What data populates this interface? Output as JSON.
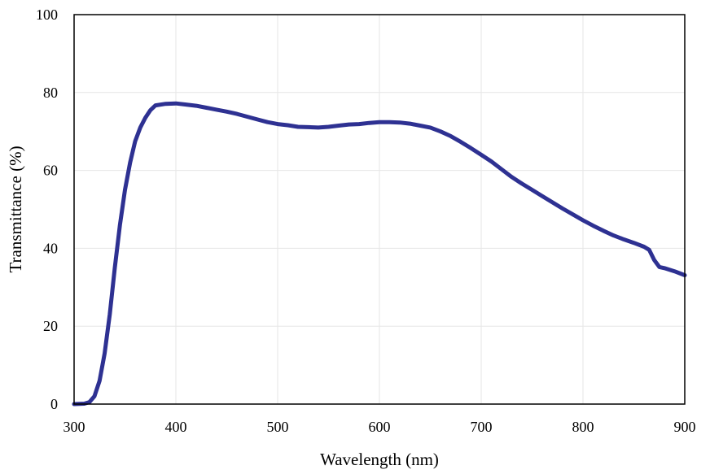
{
  "chart_data": {
    "type": "line",
    "title": "",
    "xlabel": "Wavelength (nm)",
    "ylabel": "Transmittance (%)",
    "xlim": [
      300,
      900
    ],
    "ylim": [
      0,
      100
    ],
    "x_ticks": [
      300,
      400,
      500,
      600,
      700,
      800,
      900
    ],
    "y_ticks": [
      0,
      20,
      40,
      60,
      80,
      100
    ],
    "grid": true,
    "legend": "none",
    "series": [
      {
        "color": "#2e3192",
        "points": [
          [
            300,
            0
          ],
          [
            310,
            0.1
          ],
          [
            315,
            0.5
          ],
          [
            320,
            2
          ],
          [
            325,
            6
          ],
          [
            330,
            13
          ],
          [
            335,
            23
          ],
          [
            340,
            35
          ],
          [
            345,
            46
          ],
          [
            350,
            55
          ],
          [
            355,
            62
          ],
          [
            360,
            67.5
          ],
          [
            365,
            71
          ],
          [
            370,
            73.5
          ],
          [
            375,
            75.5
          ],
          [
            380,
            76.7
          ],
          [
            390,
            77.1
          ],
          [
            400,
            77.2
          ],
          [
            410,
            76.9
          ],
          [
            420,
            76.6
          ],
          [
            430,
            76.1
          ],
          [
            440,
            75.6
          ],
          [
            450,
            75.1
          ],
          [
            460,
            74.5
          ],
          [
            470,
            73.8
          ],
          [
            480,
            73.1
          ],
          [
            490,
            72.4
          ],
          [
            500,
            71.9
          ],
          [
            510,
            71.6
          ],
          [
            520,
            71.2
          ],
          [
            530,
            71.1
          ],
          [
            540,
            71.0
          ],
          [
            550,
            71.2
          ],
          [
            560,
            71.5
          ],
          [
            570,
            71.8
          ],
          [
            580,
            71.9
          ],
          [
            590,
            72.2
          ],
          [
            600,
            72.4
          ],
          [
            610,
            72.4
          ],
          [
            620,
            72.3
          ],
          [
            630,
            72.0
          ],
          [
            640,
            71.5
          ],
          [
            650,
            71.0
          ],
          [
            660,
            70.0
          ],
          [
            670,
            68.8
          ],
          [
            680,
            67.3
          ],
          [
            690,
            65.7
          ],
          [
            700,
            64.0
          ],
          [
            710,
            62.3
          ],
          [
            720,
            60.3
          ],
          [
            730,
            58.3
          ],
          [
            740,
            56.6
          ],
          [
            750,
            55.0
          ],
          [
            760,
            53.4
          ],
          [
            770,
            51.8
          ],
          [
            780,
            50.2
          ],
          [
            790,
            48.7
          ],
          [
            800,
            47.2
          ],
          [
            810,
            45.8
          ],
          [
            820,
            44.5
          ],
          [
            830,
            43.3
          ],
          [
            840,
            42.3
          ],
          [
            850,
            41.4
          ],
          [
            860,
            40.4
          ],
          [
            865,
            39.6
          ],
          [
            870,
            37.0
          ],
          [
            875,
            35.2
          ],
          [
            880,
            34.9
          ],
          [
            890,
            34.1
          ],
          [
            900,
            33.1
          ]
        ]
      }
    ]
  }
}
